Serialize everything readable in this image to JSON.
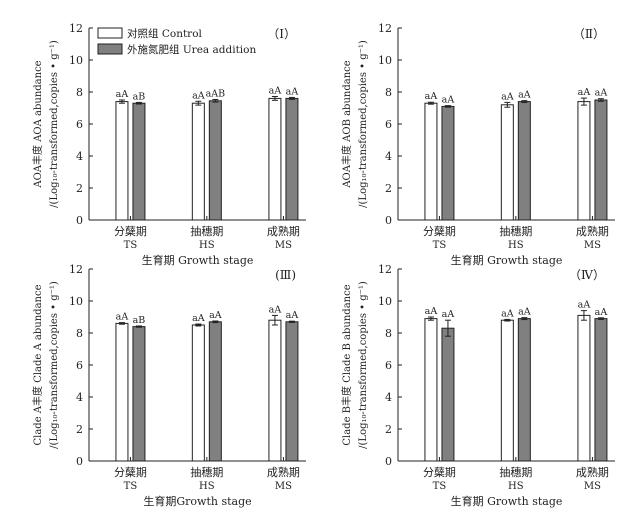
{
  "colors": {
    "control": "#ffffff",
    "urea": "#808080",
    "axis": "#222222"
  },
  "legend": [
    {
      "zh": "对照组",
      "en": "Control",
      "color": "#ffffff"
    },
    {
      "zh": "外施氮肥组",
      "en": "Urea addition",
      "color": "#808080"
    }
  ],
  "chart_data": [
    {
      "type": "bar",
      "panel_label": "（Ⅰ）",
      "ylabel_line1": "AOA丰度  AOA abundance",
      "ylabel_line2": "/(Log₁₀-transformed,copies • g⁻¹)",
      "xlabel": "生育期 Growth stage",
      "ylim": [
        0,
        12
      ],
      "yticks": [
        "0",
        "2",
        "4",
        "6",
        "8",
        "10",
        "12"
      ],
      "categories": [
        {
          "zh": "分蘖期",
          "en": "TS"
        },
        {
          "zh": "抽穗期",
          "en": "HS"
        },
        {
          "zh": "成熟期",
          "en": "MS"
        }
      ],
      "series": [
        {
          "name": "Control",
          "values": [
            7.4,
            7.3,
            7.6
          ],
          "errors": [
            0.1,
            0.12,
            0.12
          ],
          "letters": [
            "aA",
            "aA",
            "aA"
          ]
        },
        {
          "name": "Urea addition",
          "values": [
            7.3,
            7.45,
            7.6
          ],
          "errors": [
            0.05,
            0.08,
            0.06
          ],
          "letters": [
            "aB",
            "aAB",
            "aA"
          ]
        }
      ]
    },
    {
      "type": "bar",
      "panel_label": "（Ⅱ）",
      "ylabel_line1": "AOA丰度  AOB abundance",
      "ylabel_line2": "/(Log₁₀-transformed,copies • g⁻¹)",
      "xlabel": "生育期 Growth stage",
      "ylim": [
        0,
        12
      ],
      "yticks": [
        "0",
        "2",
        "4",
        "6",
        "8",
        "10",
        "12"
      ],
      "categories": [
        {
          "zh": "分蘖期",
          "en": "TS"
        },
        {
          "zh": "抽穗期",
          "en": "HS"
        },
        {
          "zh": "成熟期",
          "en": "MS"
        }
      ],
      "series": [
        {
          "name": "Control",
          "values": [
            7.3,
            7.2,
            7.4
          ],
          "errors": [
            0.06,
            0.15,
            0.22
          ],
          "letters": [
            "aA",
            "aA",
            "aA"
          ]
        },
        {
          "name": "Urea addition",
          "values": [
            7.1,
            7.4,
            7.5
          ],
          "errors": [
            0.05,
            0.06,
            0.08
          ],
          "letters": [
            "aA",
            "aA",
            "aA"
          ]
        }
      ]
    },
    {
      "type": "bar",
      "panel_label": "(Ⅲ)",
      "ylabel_line1": "Clade A丰度 Clade A abundance",
      "ylabel_line2": "/(Log₁₀-transformed,copies • g⁻¹)",
      "xlabel": "生育期Growth stage",
      "ylim": [
        0,
        12
      ],
      "yticks": [
        "0",
        "2",
        "4",
        "6",
        "8",
        "10",
        "12"
      ],
      "categories": [
        {
          "zh": "分蘖期",
          "en": "TS"
        },
        {
          "zh": "抽穗期",
          "en": "HS"
        },
        {
          "zh": "成熟期",
          "en": "MS"
        }
      ],
      "series": [
        {
          "name": "Control",
          "values": [
            8.6,
            8.5,
            8.8
          ],
          "errors": [
            0.05,
            0.06,
            0.3
          ],
          "letters": [
            "aA",
            "aA",
            "aA"
          ]
        },
        {
          "name": "Urea addition",
          "values": [
            8.4,
            8.7,
            8.7
          ],
          "errors": [
            0.04,
            0.05,
            0.04
          ],
          "letters": [
            "aB",
            "aA",
            "aA"
          ]
        }
      ]
    },
    {
      "type": "bar",
      "panel_label": "（Ⅳ）",
      "ylabel_line1": "Clade B丰度 Clade B abundance",
      "ylabel_line2": "/(Log₁₀-transformed,copies • g⁻¹)",
      "xlabel": "生育期 Growth stage",
      "ylim": [
        0,
        12
      ],
      "yticks": [
        "0",
        "2",
        "4",
        "6",
        "8",
        "10",
        "12"
      ],
      "categories": [
        {
          "zh": "分蘖期",
          "en": "TS"
        },
        {
          "zh": "抽穗期",
          "en": "HS"
        },
        {
          "zh": "成熟期",
          "en": "MS"
        }
      ],
      "series": [
        {
          "name": "Control",
          "values": [
            8.9,
            8.8,
            9.1
          ],
          "errors": [
            0.1,
            0.05,
            0.3
          ],
          "letters": [
            "aA",
            "aA",
            "aA"
          ]
        },
        {
          "name": "Urea addition",
          "values": [
            8.3,
            8.9,
            8.9
          ],
          "errors": [
            0.5,
            0.06,
            0.05
          ],
          "letters": [
            "aA",
            "aA",
            "aA"
          ]
        }
      ]
    }
  ]
}
